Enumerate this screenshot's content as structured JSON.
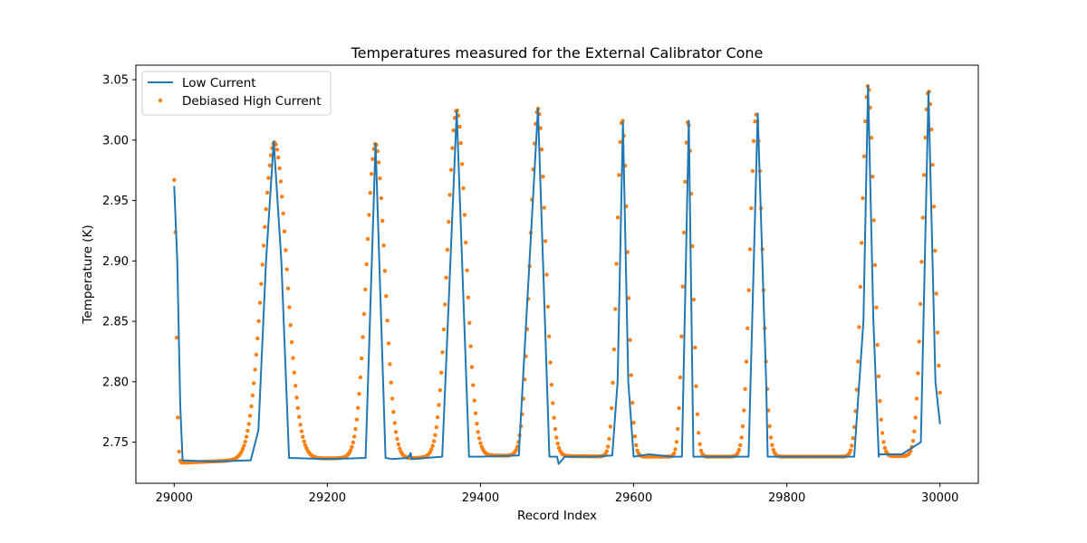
{
  "chart_data": {
    "type": "line",
    "title": "Temperatures measured for the External Calibrator Cone",
    "xlabel": "Record Index",
    "ylabel": "Temperature (K)",
    "xlim": [
      28950,
      30050
    ],
    "ylim": [
      2.716,
      3.062
    ],
    "xticks": [
      29000,
      29200,
      29400,
      29600,
      29800,
      30000
    ],
    "yticks": [
      2.75,
      2.8,
      2.85,
      2.9,
      2.95,
      3.0,
      3.05
    ],
    "xtick_labels": [
      "29000",
      "29200",
      "29400",
      "29600",
      "29800",
      "30000"
    ],
    "ytick_labels": [
      "2.75",
      "2.80",
      "2.85",
      "2.90",
      "2.95",
      "3.00",
      "3.05"
    ],
    "grid": false,
    "legend_position": "top-left",
    "series": [
      {
        "name": "Low Current",
        "kind": "line",
        "color": "#1f77b4",
        "x": [
          29000,
          29004,
          29008,
          29011,
          29050,
          29100,
          29110,
          29120,
          29130,
          29140,
          29150,
          29200,
          29250,
          29263,
          29276,
          29285,
          29305,
          29309,
          29310,
          29350,
          29369,
          29385,
          29395,
          29400,
          29450,
          29475,
          29490,
          29500,
          29502,
          29510,
          29550,
          29572,
          29579,
          29586,
          29593,
          29600,
          29620,
          29650,
          29663,
          29672,
          29678,
          29685,
          29700,
          29750,
          29762,
          29773,
          29775,
          29800,
          29850,
          29888,
          29900,
          29906,
          29913,
          29920,
          29921,
          29950,
          29975,
          29985,
          29994,
          30000
        ],
        "y": [
          2.962,
          2.9,
          2.78,
          2.735,
          2.734,
          2.735,
          2.76,
          2.9,
          2.999,
          2.9,
          2.737,
          2.736,
          2.737,
          2.997,
          2.737,
          2.736,
          2.737,
          2.741,
          2.736,
          2.738,
          3.024,
          2.738,
          2.738,
          2.738,
          2.739,
          3.026,
          2.738,
          2.738,
          2.732,
          2.738,
          2.738,
          2.739,
          2.8,
          3.015,
          2.8,
          2.738,
          2.74,
          2.738,
          2.738,
          3.016,
          2.738,
          2.738,
          2.738,
          2.738,
          3.022,
          2.8,
          2.738,
          2.738,
          2.738,
          2.738,
          2.85,
          3.045,
          2.85,
          2.738,
          2.74,
          2.74,
          2.75,
          3.04,
          2.8,
          2.765
        ]
      },
      {
        "name": "Debiased High Current",
        "kind": "scatter",
        "color": "#ff7f0e",
        "baseline": [
          [
            29000,
            2.734
          ],
          [
            29010,
            2.733
          ],
          [
            29120,
            2.736
          ],
          [
            29250,
            2.737
          ],
          [
            29285,
            2.736
          ],
          [
            29350,
            2.738
          ],
          [
            29400,
            2.739
          ],
          [
            29600,
            2.738
          ],
          [
            29900,
            2.738
          ],
          [
            30000,
            2.739
          ]
        ],
        "peaks": [
          {
            "center": 29131,
            "peak": 2.998,
            "width": 16
          },
          {
            "center": 29263,
            "peak": 2.997,
            "width": 12
          },
          {
            "center": 29369,
            "peak": 3.025,
            "width": 12
          },
          {
            "center": 29475,
            "peak": 3.026,
            "width": 10
          },
          {
            "center": 29585,
            "peak": 3.017,
            "width": 7
          },
          {
            "center": 29671,
            "peak": 3.016,
            "width": 6
          },
          {
            "center": 29760,
            "peak": 3.021,
            "width": 8
          },
          {
            "center": 29906,
            "peak": 3.045,
            "width": 8
          },
          {
            "center": 29985,
            "peak": 3.041,
            "width": 8
          }
        ],
        "decay_start": {
          "x0": 29000,
          "y0": 2.967,
          "width": 2.5
        },
        "xlim_data": [
          29000,
          30000
        ],
        "step": 1.6
      }
    ]
  }
}
